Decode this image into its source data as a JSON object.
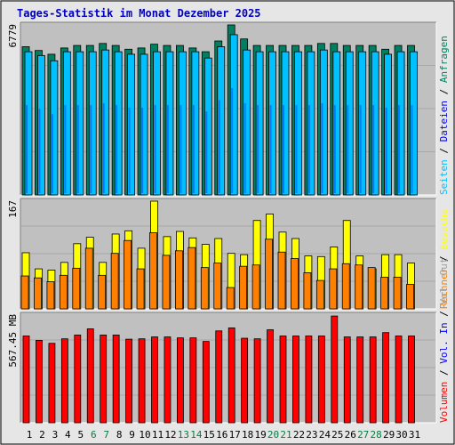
{
  "title": "Tages-Statistik im Monat Dezember 2025",
  "colors": {
    "background": "#e6e6e6",
    "panel": "#c0c0c0",
    "title": "#0000c0",
    "anfragen": "#008060",
    "dateien": "#0000ff",
    "seiten": "#00c0ff",
    "besuche": "#ffff00",
    "rechner": "#ff8000",
    "vol_out": "#a0a0a0",
    "vol_in": "#0000ff",
    "volumen": "#ff0000",
    "weekend": "#008040",
    "weekday": "#000000"
  },
  "chart_data": [
    {
      "type": "bar",
      "ylabel_max": "6779",
      "ylim": [
        0,
        6779
      ],
      "x": [
        "1",
        "2",
        "3",
        "4",
        "5",
        "6",
        "7",
        "8",
        "9",
        "10",
        "11",
        "12",
        "13",
        "14",
        "15",
        "16",
        "17",
        "18",
        "19",
        "20",
        "21",
        "22",
        "23",
        "24",
        "25",
        "26",
        "27",
        "28",
        "29",
        "30",
        "31"
      ],
      "weekend_days": [
        "6",
        "7",
        "13",
        "14",
        "20",
        "21",
        "27",
        "28"
      ],
      "legend": [
        {
          "label": "Anfragen",
          "color": "#008060"
        },
        {
          "label": "Dateien",
          "color": "#0000ff"
        },
        {
          "label": "Seiten",
          "color": "#00c0ff"
        }
      ],
      "series": [
        {
          "name": "Anfragen",
          "values": [
            5910,
            5760,
            5610,
            5860,
            5960,
            5960,
            6040,
            5960,
            5810,
            5860,
            6010,
            5960,
            5960,
            5860,
            5710,
            6140,
            6779,
            6220,
            5960,
            5960,
            5960,
            5960,
            5960,
            6040,
            6040,
            5960,
            5960,
            5960,
            5810,
            5960,
            5960
          ]
        },
        {
          "name": "Seiten",
          "values": [
            5710,
            5560,
            5350,
            5710,
            5710,
            5710,
            5780,
            5710,
            5610,
            5610,
            5710,
            5710,
            5710,
            5710,
            5460,
            5910,
            6390,
            5780,
            5710,
            5710,
            5710,
            5710,
            5710,
            5780,
            5710,
            5710,
            5710,
            5710,
            5610,
            5710,
            5710
          ]
        }
      ]
    },
    {
      "type": "bar",
      "ylabel_max": "167",
      "ylim": [
        0,
        167
      ],
      "legend": [
        {
          "label": "Besuche",
          "color": "#ffff00"
        },
        {
          "label": "Rechner",
          "color": "#ff8000"
        }
      ],
      "series": [
        {
          "name": "Besuche",
          "values": [
            87,
            62,
            60,
            72,
            101,
            111,
            72,
            116,
            121,
            94,
            167,
            112,
            120,
            110,
            100,
            109,
            86,
            84,
            137,
            147,
            119,
            109,
            82,
            81,
            96,
            137,
            82,
            62,
            84,
            84,
            71
          ]
        },
        {
          "name": "Rechner",
          "values": [
            51,
            48,
            42,
            52,
            63,
            94,
            52,
            86,
            106,
            62,
            118,
            83,
            90,
            95,
            64,
            71,
            33,
            66,
            68,
            108,
            88,
            78,
            56,
            44,
            62,
            70,
            68,
            64,
            49,
            49,
            38
          ]
        }
      ]
    },
    {
      "type": "bar",
      "ylabel": "567.45 MB",
      "ylim": [
        0,
        567.45
      ],
      "legend": [
        {
          "label": "Volumen",
          "color": "#ff0000"
        },
        {
          "label": "Vol. In",
          "color": "#0000ff"
        },
        {
          "label": "Vol. Out",
          "color": "#a0a0a0"
        }
      ],
      "series": [
        {
          "name": "Volumen",
          "values": [
            461,
            438,
            422,
            446,
            466,
            499,
            466,
            466,
            444,
            446,
            456,
            456,
            451,
            451,
            432,
            488,
            504,
            449,
            446,
            494,
            461,
            461,
            461,
            461,
            567,
            456,
            456,
            456,
            479,
            461,
            461
          ]
        }
      ]
    }
  ]
}
